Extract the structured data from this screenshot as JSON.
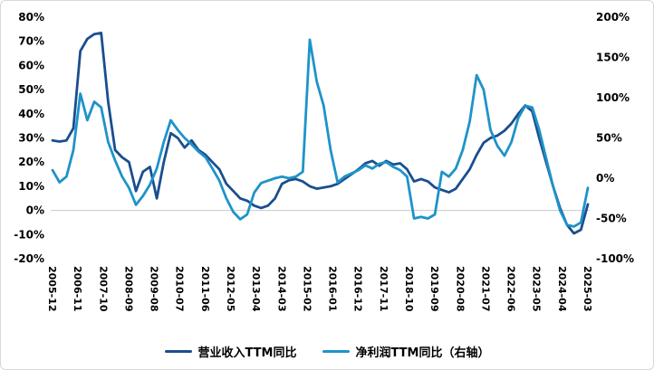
{
  "chart_data": {
    "type": "line",
    "title": "",
    "legend_position": "bottom",
    "grid": "zero-line-only",
    "left_axis": {
      "min": -20,
      "max": 80,
      "ticks": [
        {
          "value": 80,
          "label": "80%"
        },
        {
          "value": 70,
          "label": "70%"
        },
        {
          "value": 60,
          "label": "60%"
        },
        {
          "value": 50,
          "label": "50%"
        },
        {
          "value": 40,
          "label": "40%"
        },
        {
          "value": 30,
          "label": "30%"
        },
        {
          "value": 20,
          "label": "20%"
        },
        {
          "value": 10,
          "label": "10%"
        },
        {
          "value": 0,
          "label": "0%"
        },
        {
          "value": -10,
          "label": "-10%"
        },
        {
          "value": -20,
          "label": "-20%"
        }
      ]
    },
    "right_axis": {
      "min": -100,
      "max": 200,
      "ticks": [
        {
          "value": 200,
          "label": "200%"
        },
        {
          "value": 150,
          "label": "150%"
        },
        {
          "value": 100,
          "label": "100%"
        },
        {
          "value": 50,
          "label": "50%"
        },
        {
          "value": 0,
          "label": "0%"
        },
        {
          "value": -50,
          "label": "-50%"
        },
        {
          "value": -100,
          "label": "-100%"
        }
      ]
    },
    "x_ticks": [
      {
        "label": "2005-12",
        "month": 0
      },
      {
        "label": "2006-11",
        "month": 11
      },
      {
        "label": "2007-10",
        "month": 22
      },
      {
        "label": "2008-09",
        "month": 33
      },
      {
        "label": "2009-08",
        "month": 44
      },
      {
        "label": "2010-07",
        "month": 55
      },
      {
        "label": "2011-06",
        "month": 66
      },
      {
        "label": "2012-05",
        "month": 77
      },
      {
        "label": "2013-04",
        "month": 88
      },
      {
        "label": "2014-03",
        "month": 99
      },
      {
        "label": "2015-02",
        "month": 110
      },
      {
        "label": "2016-01",
        "month": 121
      },
      {
        "label": "2016-12",
        "month": 132
      },
      {
        "label": "2017-11",
        "month": 143
      },
      {
        "label": "2018-10",
        "month": 154
      },
      {
        "label": "2019-09",
        "month": 165
      },
      {
        "label": "2020-08",
        "month": 176
      },
      {
        "label": "2021-07",
        "month": 187
      },
      {
        "label": "2022-06",
        "month": 198
      },
      {
        "label": "2023-05",
        "month": 209
      },
      {
        "label": "2024-04",
        "month": 220
      },
      {
        "label": "2025-03",
        "month": 231
      }
    ],
    "month_step": 3,
    "dates": [
      "2005-12",
      "2006-03",
      "2006-06",
      "2006-09",
      "2006-12",
      "2007-03",
      "2007-06",
      "2007-09",
      "2007-12",
      "2008-03",
      "2008-06",
      "2008-09",
      "2008-12",
      "2009-03",
      "2009-06",
      "2009-09",
      "2009-12",
      "2010-03",
      "2010-06",
      "2010-09",
      "2010-12",
      "2011-03",
      "2011-06",
      "2011-09",
      "2011-12",
      "2012-03",
      "2012-06",
      "2012-09",
      "2012-12",
      "2013-03",
      "2013-06",
      "2013-09",
      "2013-12",
      "2014-03",
      "2014-06",
      "2014-09",
      "2014-12",
      "2015-03",
      "2015-06",
      "2015-09",
      "2015-12",
      "2016-03",
      "2016-06",
      "2016-09",
      "2016-12",
      "2017-03",
      "2017-06",
      "2017-09",
      "2017-12",
      "2018-03",
      "2018-06",
      "2018-09",
      "2018-12",
      "2019-03",
      "2019-06",
      "2019-09",
      "2019-12",
      "2020-03",
      "2020-06",
      "2020-09",
      "2020-12",
      "2021-03",
      "2021-06",
      "2021-09",
      "2021-12",
      "2022-03",
      "2022-06",
      "2022-09",
      "2022-12",
      "2023-03",
      "2023-06",
      "2023-09",
      "2023-12",
      "2024-03",
      "2024-06",
      "2024-09",
      "2024-12",
      "2025-03"
    ],
    "series": [
      {
        "name": "营业收入TTM同比",
        "axis": "left",
        "color": "#1a4e8f",
        "values": [
          29,
          28.5,
          29,
          34,
          66,
          71,
          73,
          73.5,
          45,
          25,
          22,
          20,
          8,
          16,
          18,
          5,
          20,
          32,
          30,
          26,
          29,
          25,
          23,
          20,
          17,
          11,
          8,
          5,
          4,
          2,
          1,
          2,
          5,
          11,
          12.5,
          13,
          12,
          10,
          9,
          9.5,
          10,
          11,
          13,
          15,
          17,
          19.5,
          20.5,
          18.5,
          20.5,
          19,
          19.5,
          17,
          12,
          13,
          12,
          9.5,
          8.5,
          7.5,
          9,
          13,
          17,
          23,
          28,
          30,
          31,
          33,
          36,
          40,
          43.5,
          41,
          30,
          20,
          10,
          1,
          -6,
          -9.5,
          -8,
          2.5
        ]
      },
      {
        "name": "净利润TTM同比（右轴）",
        "axis": "right",
        "color": "#1e93c9",
        "values": [
          10,
          -5,
          2,
          35,
          105,
          72,
          95,
          88,
          45,
          22,
          2,
          -12,
          -33,
          -22,
          -8,
          12,
          45,
          72,
          60,
          50,
          42,
          33,
          26,
          12,
          -3,
          -25,
          -42,
          -51,
          -45,
          -18,
          -6,
          -3,
          0,
          2,
          0,
          2,
          8,
          172,
          120,
          90,
          35,
          -5,
          2,
          6,
          10,
          16,
          12,
          18,
          20,
          14,
          10,
          2,
          -50,
          -48,
          -50,
          -45,
          8,
          2,
          12,
          35,
          70,
          128,
          110,
          60,
          40,
          28,
          45,
          75,
          90,
          88,
          60,
          25,
          -10,
          -40,
          -58,
          -60,
          -55,
          -12
        ]
      }
    ]
  }
}
